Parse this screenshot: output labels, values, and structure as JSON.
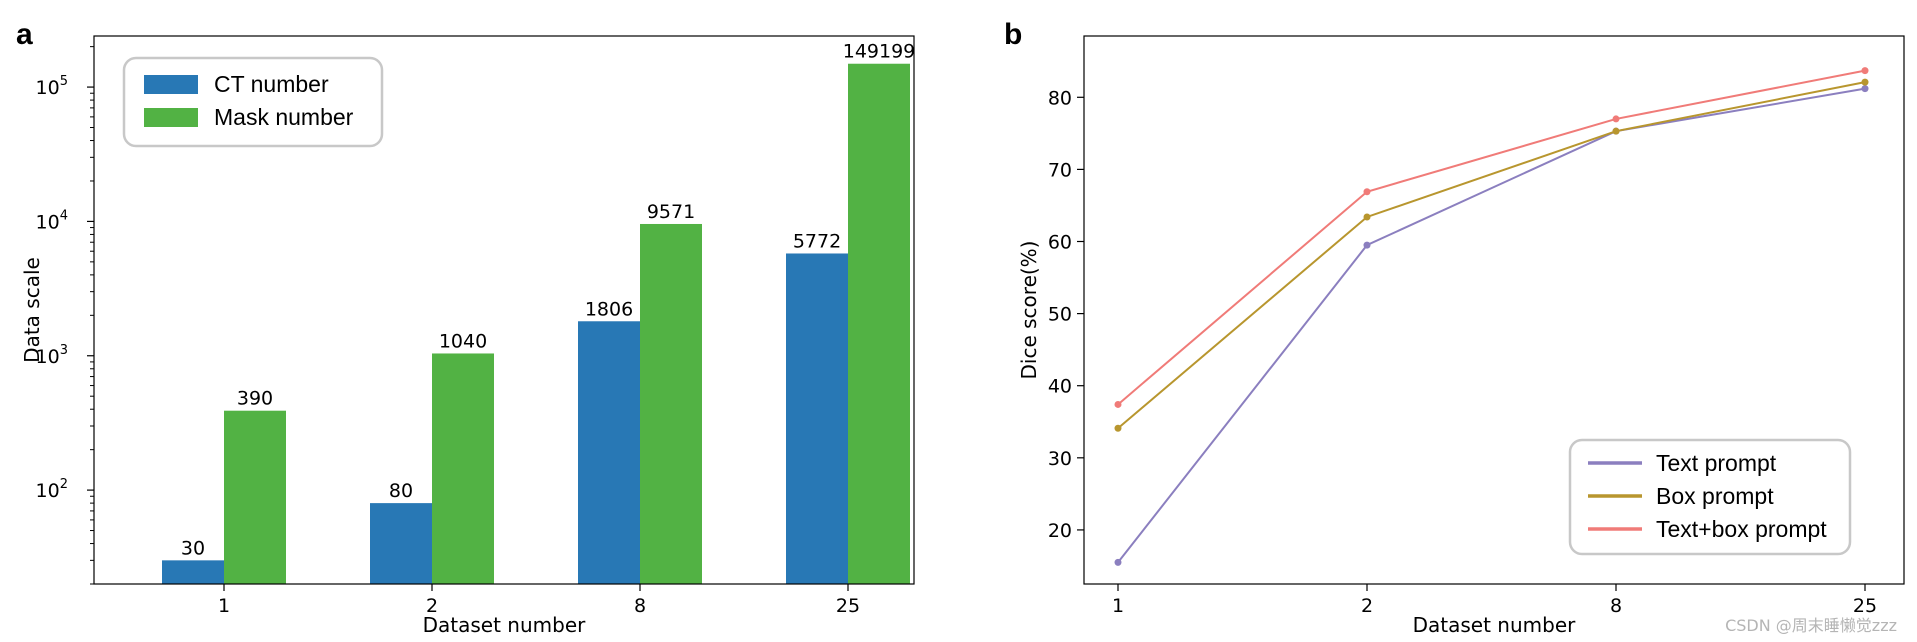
{
  "chart_data": [
    {
      "panel": "a",
      "type": "bar",
      "yscale": "log",
      "xlabel": "Dataset number",
      "ylabel": "Data scale",
      "categories": [
        "1",
        "2",
        "8",
        "25"
      ],
      "series": [
        {
          "name": "CT number",
          "color": "#2878b5",
          "values": [
            30,
            80,
            1806,
            5772
          ]
        },
        {
          "name": "Mask number",
          "color": "#52b244",
          "values": [
            390,
            1040,
            9571,
            149199
          ]
        }
      ],
      "y_ticks": [
        {
          "base": "10",
          "exp": "2",
          "value": 100
        },
        {
          "base": "10",
          "exp": "3",
          "value": 1000
        },
        {
          "base": "10",
          "exp": "4",
          "value": 10000
        },
        {
          "base": "10",
          "exp": "5",
          "value": 100000
        }
      ],
      "ylim": [
        20,
        240000
      ],
      "legend": "top-left"
    },
    {
      "panel": "b",
      "type": "line",
      "xlabel": "Dataset number",
      "ylabel": "Dice score(%)",
      "x": [
        "1",
        "2",
        "8",
        "25"
      ],
      "series": [
        {
          "name": "Text prompt",
          "color": "#8b7fbf",
          "values": [
            15.5,
            59.5,
            75.3,
            81.2
          ]
        },
        {
          "name": "Box prompt",
          "color": "#b8962e",
          "values": [
            34.1,
            63.4,
            75.3,
            82.1
          ]
        },
        {
          "name": "Text+box prompt",
          "color": "#f07b78",
          "values": [
            37.4,
            66.9,
            77.0,
            83.7
          ]
        }
      ],
      "y_ticks": [
        "20",
        "30",
        "40",
        "50",
        "60",
        "70",
        "80"
      ],
      "ylim": [
        12.5,
        88.5
      ],
      "legend": "bottom-right"
    }
  ],
  "watermark": "CSDN @周末睡懒觉zzz"
}
